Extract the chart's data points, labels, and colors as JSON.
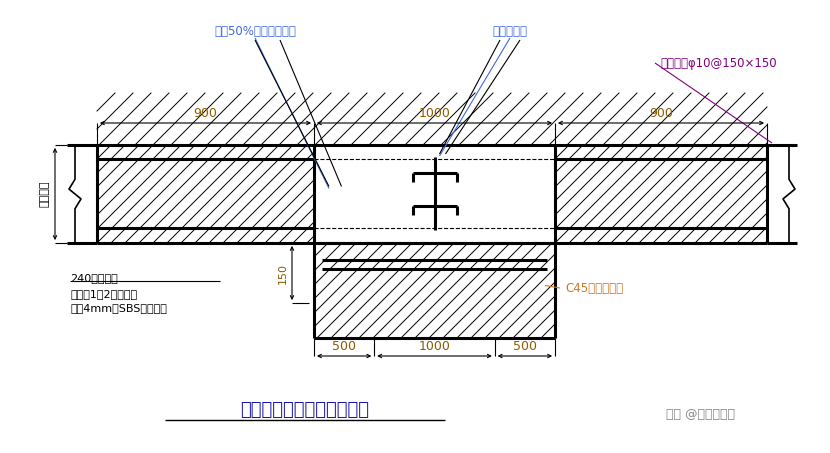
{
  "bg_color": "#ffffff",
  "title": "地下室外墙施工后浇带示意",
  "title_color": "#1a1aaa",
  "watermark": "头条 @地产微分享",
  "watermark_color": "#888888",
  "label_blue": "#4169E1",
  "label_orange": "#CC7722",
  "label_purple": "#800080",
  "label_black": "#000000",
  "ann1": "附加50%的墙水平钢筋",
  "ann2": "钢板止水带",
  "ann3": "附加钢筋φ10@150×150",
  "ann4": "外墙厚度",
  "ann5": "240厚砖胎模",
  "ann6": "外侧抹1：2防水砂浆",
  "ann7": "外贴4mm厚SBS防水卷材",
  "ann8": "C45补偿收缩砼",
  "d900L": "900",
  "d1000": "1000",
  "d900R": "900",
  "d150": "150",
  "d500L": "500",
  "d1000b": "1000",
  "d500R": "500"
}
